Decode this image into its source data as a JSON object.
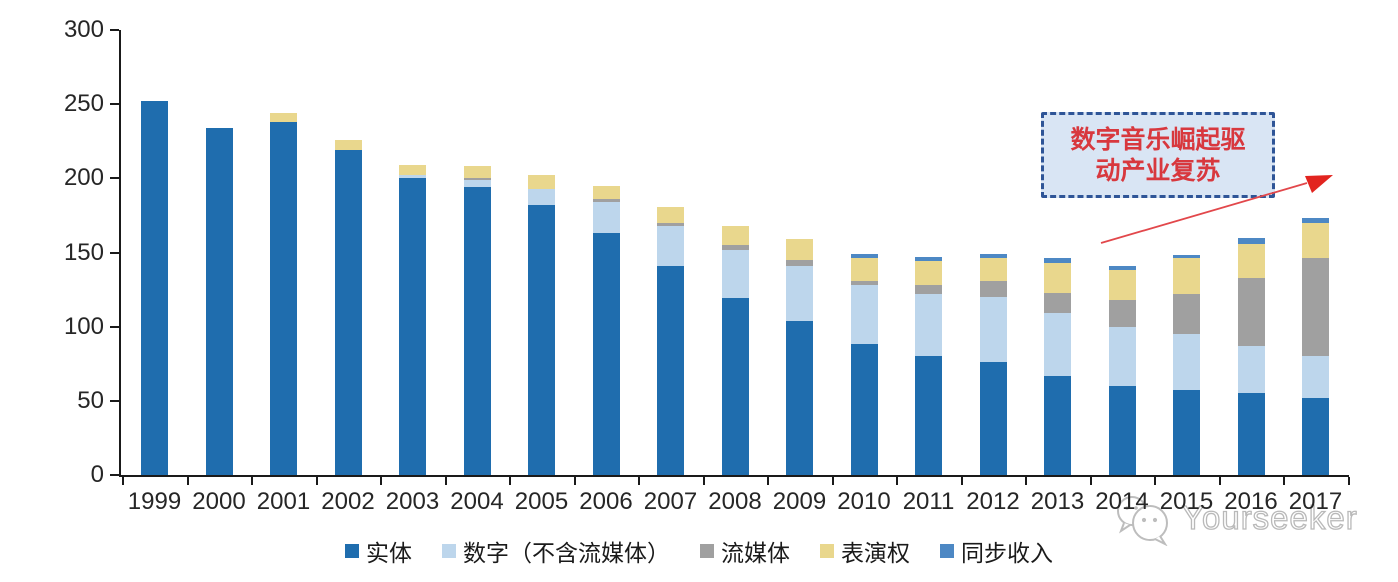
{
  "chart_data": {
    "type": "bar",
    "stacked": true,
    "categories": [
      "1999",
      "2000",
      "2001",
      "2002",
      "2003",
      "2004",
      "2005",
      "2006",
      "2007",
      "2008",
      "2009",
      "2010",
      "2011",
      "2012",
      "2013",
      "2014",
      "2015",
      "2016",
      "2017"
    ],
    "series": [
      {
        "name": "实体",
        "color": "#1f6dae",
        "values": [
          252,
          234,
          238,
          219,
          200,
          194,
          182,
          163,
          141,
          119,
          104,
          88,
          80,
          76,
          67,
          60,
          57,
          55,
          52
        ]
      },
      {
        "name": "数字（不含流媒体）",
        "color": "#bdd6ec",
        "values": [
          0,
          0,
          0,
          0,
          2,
          5,
          11,
          21,
          27,
          33,
          37,
          40,
          42,
          44,
          42,
          40,
          38,
          32,
          28
        ]
      },
      {
        "name": "流媒体",
        "color": "#a0a0a0",
        "values": [
          0,
          0,
          0,
          0,
          0,
          1,
          0,
          2,
          2,
          3,
          4,
          3,
          6,
          11,
          14,
          18,
          27,
          46,
          66
        ]
      },
      {
        "name": "表演权",
        "color": "#e9d78d",
        "values": [
          0,
          0,
          6,
          7,
          7,
          8,
          9,
          9,
          11,
          13,
          14,
          15,
          16,
          15,
          20,
          20,
          24,
          23,
          24
        ]
      },
      {
        "name": "同步收入",
        "color": "#4d88c4",
        "values": [
          0,
          0,
          0,
          0,
          0,
          0,
          0,
          0,
          0,
          0,
          0,
          3,
          3,
          3,
          3,
          3,
          2,
          4,
          3
        ]
      }
    ],
    "ylim": [
      0,
      300
    ],
    "yticks": [
      0,
      50,
      100,
      150,
      200,
      250,
      300
    ],
    "grid": false,
    "legend_position": "bottom",
    "title": ""
  },
  "annotation": {
    "line1": "数字音乐崛起驱",
    "line2": "动产业复苏",
    "text_color": "#d8383e",
    "box_fill": "#d9e5f4",
    "box_border": "#2f5597",
    "arrow_color": "#e2474b"
  },
  "watermark": {
    "text": "Yourseeker",
    "color": "#b9b9b9"
  }
}
